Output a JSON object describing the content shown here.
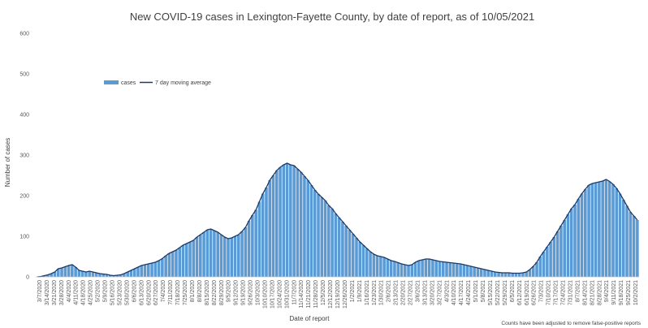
{
  "chart_data": {
    "type": "bar",
    "title": "New COVID-19 cases in Lexington-Fayette County, by date of report, as of 10/05/2021",
    "xlabel": "Date of report",
    "ylabel": "Number of cases",
    "ylim": [
      0,
      600
    ],
    "yticks": [
      0,
      100,
      200,
      300,
      400,
      500,
      600
    ],
    "grid": false,
    "legend_position": "top-left",
    "note": "Counts have been adjusted to remove false-positive reports",
    "colors": {
      "bars": "#5b9bd5",
      "line": "#1f3864"
    },
    "x_tick_labels": [
      "3/7/2020",
      "3/14/2020",
      "3/21/2020",
      "3/28/2020",
      "4/4/2020",
      "4/11/2020",
      "4/18/2020",
      "4/25/2020",
      "5/2/2020",
      "5/9/2020",
      "5/16/2020",
      "5/23/2020",
      "5/30/2020",
      "6/6/2020",
      "6/13/2020",
      "6/20/2020",
      "6/27/2020",
      "7/4/2020",
      "7/11/2020",
      "7/18/2020",
      "7/25/2020",
      "8/1/2020",
      "8/8/2020",
      "8/15/2020",
      "8/22/2020",
      "8/29/2020",
      "9/5/2020",
      "9/12/2020",
      "9/19/2020",
      "9/26/2020",
      "10/3/2020",
      "10/10/2020",
      "10/17/2020",
      "10/24/2020",
      "10/31/2020",
      "11/7/2020",
      "11/14/2020",
      "11/21/2020",
      "11/28/2020",
      "12/5/2020",
      "12/12/2020",
      "12/19/2020",
      "12/26/2020",
      "1/2/2021",
      "1/9/2021",
      "1/16/2021",
      "1/23/2021",
      "1/30/2021",
      "2/6/2021",
      "2/13/2021",
      "2/20/2021",
      "2/27/2021",
      "3/6/2021",
      "3/13/2021",
      "3/20/2021",
      "3/27/2021",
      "4/3/2021",
      "4/10/2021",
      "4/17/2021",
      "4/24/2021",
      "5/1/2021",
      "5/8/2021",
      "5/15/2021",
      "5/22/2021",
      "5/29/2021",
      "6/5/2021",
      "6/12/2021",
      "6/19/2021",
      "6/26/2021",
      "7/3/2021",
      "7/10/2021",
      "7/17/2021",
      "7/24/2021",
      "7/31/2021",
      "8/7/2021",
      "8/14/2021",
      "8/21/2021",
      "8/28/2021",
      "9/4/2021",
      "9/11/2021",
      "9/18/2021",
      "9/25/2021",
      "10/2/2021"
    ],
    "series": [
      {
        "name": "cases",
        "values": [
          0,
          1,
          3,
          5,
          8,
          12,
          20,
          22,
          25,
          28,
          30,
          24,
          16,
          14,
          12,
          14,
          12,
          10,
          8,
          7,
          6,
          4,
          3,
          4,
          5,
          8,
          12,
          16,
          20,
          24,
          28,
          30,
          32,
          34,
          36,
          40,
          45,
          52,
          58,
          62,
          66,
          72,
          78,
          82,
          86,
          90,
          98,
          104,
          110,
          116,
          118,
          114,
          110,
          104,
          98,
          94,
          96,
          100,
          104,
          112,
          122,
          138,
          152,
          165,
          185,
          205,
          220,
          238,
          250,
          262,
          270,
          276,
          280,
          276,
          274,
          266,
          258,
          248,
          238,
          226,
          214,
          204,
          196,
          188,
          176,
          168,
          156,
          146,
          136,
          126,
          116,
          106,
          96,
          86,
          78,
          70,
          62,
          56,
          52,
          50,
          48,
          44,
          40,
          38,
          35,
          32,
          30,
          28,
          30,
          36,
          40,
          42,
          44,
          44,
          42,
          40,
          38,
          37,
          36,
          35,
          34,
          33,
          32,
          30,
          28,
          26,
          24,
          22,
          20,
          18,
          16,
          14,
          12,
          11,
          10,
          10,
          10,
          9,
          9,
          9,
          10,
          12,
          18,
          26,
          36,
          50,
          62,
          74,
          86,
          98,
          112,
          126,
          140,
          154,
          168,
          178,
          192,
          205,
          216,
          226,
          230,
          232,
          234,
          236,
          240,
          235,
          228,
          218,
          205,
          190,
          175,
          160,
          150,
          140
        ]
      },
      {
        "name": "7 day moving average",
        "values": [
          0,
          1,
          3,
          5,
          8,
          12,
          20,
          22,
          25,
          28,
          30,
          24,
          16,
          14,
          12,
          14,
          12,
          10,
          8,
          7,
          6,
          4,
          3,
          4,
          5,
          8,
          12,
          16,
          20,
          24,
          28,
          30,
          32,
          34,
          36,
          40,
          45,
          52,
          58,
          62,
          66,
          72,
          78,
          82,
          86,
          90,
          98,
          104,
          110,
          116,
          118,
          114,
          110,
          104,
          98,
          94,
          96,
          100,
          104,
          112,
          122,
          138,
          152,
          165,
          185,
          205,
          220,
          238,
          250,
          262,
          270,
          276,
          280,
          276,
          274,
          266,
          258,
          248,
          238,
          226,
          214,
          204,
          196,
          188,
          176,
          168,
          156,
          146,
          136,
          126,
          116,
          106,
          96,
          86,
          78,
          70,
          62,
          56,
          52,
          50,
          48,
          44,
          40,
          38,
          35,
          32,
          30,
          28,
          30,
          36,
          40,
          42,
          44,
          44,
          42,
          40,
          38,
          37,
          36,
          35,
          34,
          33,
          32,
          30,
          28,
          26,
          24,
          22,
          20,
          18,
          16,
          14,
          12,
          11,
          10,
          10,
          10,
          9,
          9,
          9,
          10,
          12,
          18,
          26,
          36,
          50,
          62,
          74,
          86,
          98,
          112,
          126,
          140,
          154,
          168,
          178,
          192,
          205,
          216,
          226,
          230,
          232,
          234,
          236,
          240,
          235,
          228,
          218,
          205,
          190,
          175,
          160,
          150,
          140
        ]
      }
    ]
  }
}
